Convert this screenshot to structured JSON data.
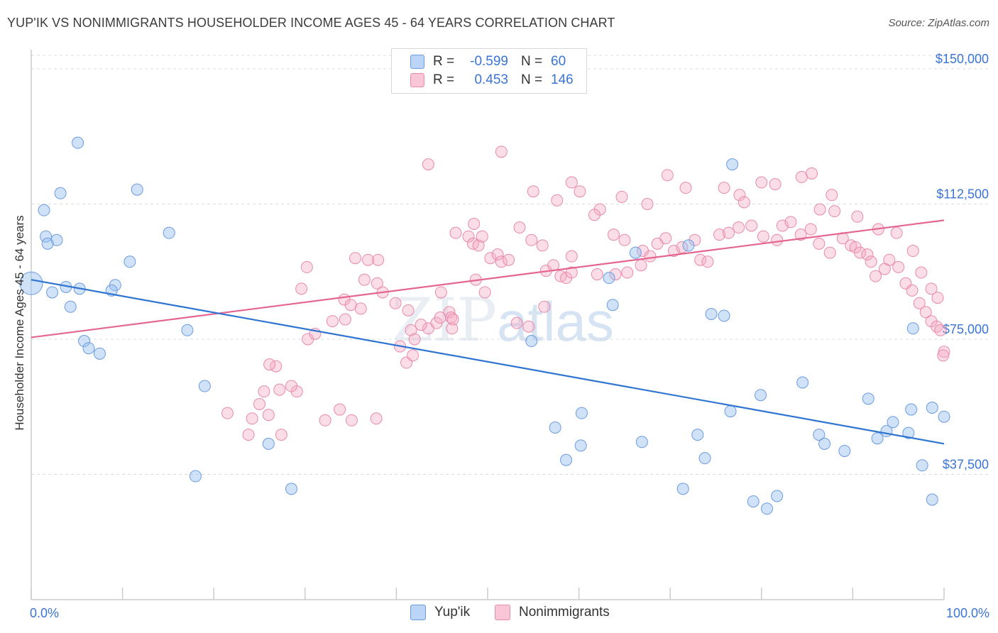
{
  "title": "YUP'IK VS NONIMMIGRANTS HOUSEHOLDER INCOME AGES 45 - 64 YEARS CORRELATION CHART",
  "source": "Source: ZipAtlas.com",
  "watermark": {
    "a": "ZIP",
    "b": "atlas"
  },
  "legend_top": [
    {
      "label": "R =",
      "r": "-0.599",
      "n_label": "N =",
      "n": "60",
      "swatch_fill": "#bcd4f5",
      "swatch_stroke": "#6b9be0"
    },
    {
      "label": "R =",
      "r": "0.453",
      "n_label": "N =",
      "n": "146",
      "swatch_fill": "#f8c6d6",
      "swatch_stroke": "#ea8aab"
    }
  ],
  "legend_bottom": [
    {
      "label": "Yup'ik",
      "fill": "#bcd4f5",
      "stroke": "#6b9be0"
    },
    {
      "label": "Nonimmigrants",
      "fill": "#f8c6d6",
      "stroke": "#ea8aab"
    }
  ],
  "colors": {
    "blue_fill": "rgba(150,190,240,0.45)",
    "blue_stroke": "#6b9be0",
    "blue_line": "#2e74d0",
    "pink_fill": "rgba(245,170,195,0.40)",
    "pink_stroke": "#e88aaa",
    "pink_line": "#e56592",
    "grid": "#dcdcdc",
    "tick_label": "#3a74d4",
    "axis": "#cccccc"
  },
  "chart_data": {
    "type": "scatter",
    "title": "YUP'IK VS NONIMMIGRANTS HOUSEHOLDER INCOME AGES 45 - 64 YEARS CORRELATION CHART",
    "xlabel": "",
    "ylabel": "Householder Income Ages 45 - 64 years",
    "xlim": [
      0,
      100
    ],
    "ylim": [
      0,
      155000
    ],
    "x_tick_labels": [
      "0.0%",
      "100.0%"
    ],
    "y_ticks": [
      37500,
      75000,
      112500,
      150000
    ],
    "y_tick_labels": [
      "$37,500",
      "$75,000",
      "$112,500",
      "$150,000"
    ],
    "grid": true,
    "legend_position": "top-center",
    "series": [
      {
        "name": "Yup'ik",
        "R": -0.599,
        "N": 60,
        "trend": [
          [
            0,
            91500
          ],
          [
            100,
            46000
          ]
        ],
        "points": [
          [
            0.0,
            90.5,
            28
          ],
          [
            5.1,
            129.5,
            14
          ],
          [
            1.4,
            110.8,
            14
          ],
          [
            3.2,
            115.5,
            14
          ],
          [
            1.6,
            103.5,
            14
          ],
          [
            2.8,
            102.5,
            14
          ],
          [
            1.8,
            101.5,
            14
          ],
          [
            11.6,
            116.5,
            14
          ],
          [
            15.1,
            104.5,
            14
          ],
          [
            10.8,
            96.5,
            14
          ],
          [
            2.3,
            88.0,
            14
          ],
          [
            3.8,
            89.5,
            14
          ],
          [
            5.3,
            89.0,
            14
          ],
          [
            9.2,
            90.0,
            14
          ],
          [
            8.8,
            88.5,
            14
          ],
          [
            4.3,
            84.0,
            14
          ],
          [
            17.1,
            77.5,
            14
          ],
          [
            5.8,
            74.5,
            14
          ],
          [
            6.3,
            72.5,
            14
          ],
          [
            7.5,
            71.0,
            14
          ],
          [
            19.0,
            62.0,
            14
          ],
          [
            18.0,
            37.0,
            14
          ],
          [
            26.0,
            46.0,
            14
          ],
          [
            28.5,
            33.5,
            14
          ],
          [
            63.3,
            92.0,
            14
          ],
          [
            76.8,
            123.5,
            14
          ],
          [
            72.0,
            101.0,
            14
          ],
          [
            63.7,
            84.5,
            14
          ],
          [
            66.2,
            99.0,
            14
          ],
          [
            75.9,
            81.5,
            14
          ],
          [
            74.5,
            82.0,
            14
          ],
          [
            54.8,
            74.5,
            14
          ],
          [
            57.4,
            50.5,
            14
          ],
          [
            60.3,
            54.5,
            14
          ],
          [
            58.6,
            41.5,
            14
          ],
          [
            60.2,
            45.5,
            14
          ],
          [
            66.9,
            46.5,
            14
          ],
          [
            73.0,
            48.5,
            14
          ],
          [
            73.8,
            42.0,
            14
          ],
          [
            71.4,
            33.5,
            14
          ],
          [
            76.6,
            55.0,
            14
          ],
          [
            79.9,
            59.5,
            14
          ],
          [
            79.1,
            30.0,
            14
          ],
          [
            81.7,
            31.5,
            14
          ],
          [
            80.6,
            28.0,
            14
          ],
          [
            84.5,
            63.0,
            14
          ],
          [
            86.3,
            48.5,
            14
          ],
          [
            86.9,
            46.0,
            14
          ],
          [
            89.1,
            44.0,
            14
          ],
          [
            91.7,
            58.5,
            14
          ],
          [
            92.7,
            47.5,
            14
          ],
          [
            93.7,
            49.5,
            14
          ],
          [
            94.4,
            52.0,
            14
          ],
          [
            96.1,
            49.0,
            14
          ],
          [
            96.4,
            55.5,
            14
          ],
          [
            96.6,
            78.0,
            14
          ],
          [
            97.6,
            40.0,
            14
          ],
          [
            98.7,
            56.0,
            14
          ],
          [
            98.7,
            30.5,
            14
          ],
          [
            100.0,
            53.5,
            14
          ]
        ]
      },
      {
        "name": "Nonimmigrants",
        "R": 0.453,
        "N": 146,
        "trend": [
          [
            0,
            75500
          ],
          [
            100,
            108000
          ]
        ],
        "points": [
          [
            21.5,
            54.5,
            14
          ],
          [
            24.2,
            53.0,
            14
          ],
          [
            26.0,
            54.0,
            14
          ],
          [
            25.0,
            57.0,
            14
          ],
          [
            23.8,
            48.5,
            14
          ],
          [
            25.5,
            60.5,
            14
          ],
          [
            27.2,
            61.0,
            14
          ],
          [
            29.1,
            60.5,
            14
          ],
          [
            28.5,
            62.0,
            14
          ],
          [
            26.8,
            67.5,
            14
          ],
          [
            26.1,
            68.0,
            14
          ],
          [
            30.3,
            75.0,
            14
          ],
          [
            31.1,
            76.5,
            14
          ],
          [
            33.0,
            80.0,
            14
          ],
          [
            34.4,
            80.5,
            14
          ],
          [
            36.1,
            83.5,
            14
          ],
          [
            34.3,
            86.0,
            14
          ],
          [
            35.0,
            84.5,
            14
          ],
          [
            35.5,
            97.5,
            14
          ],
          [
            36.9,
            97.0,
            14
          ],
          [
            38.0,
            97.0,
            14
          ],
          [
            36.5,
            91.5,
            14
          ],
          [
            37.9,
            90.5,
            14
          ],
          [
            38.5,
            88.0,
            14
          ],
          [
            30.2,
            95.0,
            14
          ],
          [
            29.6,
            89.0,
            14
          ],
          [
            39.9,
            85.0,
            14
          ],
          [
            41.3,
            83.0,
            14
          ],
          [
            41.6,
            77.5,
            14
          ],
          [
            40.4,
            73.0,
            14
          ],
          [
            41.1,
            68.5,
            14
          ],
          [
            41.8,
            70.5,
            14
          ],
          [
            42.0,
            75.0,
            14
          ],
          [
            43.5,
            78.0,
            14
          ],
          [
            44.4,
            79.5,
            14
          ],
          [
            42.7,
            79.0,
            14
          ],
          [
            44.8,
            81.0,
            14
          ],
          [
            45.8,
            82.5,
            14
          ],
          [
            46.0,
            81.0,
            14
          ],
          [
            46.1,
            78.0,
            14
          ],
          [
            46.2,
            80.5,
            14
          ],
          [
            44.9,
            88.0,
            14
          ],
          [
            48.7,
            91.5,
            14
          ],
          [
            49.7,
            88.0,
            14
          ],
          [
            46.5,
            104.5,
            14
          ],
          [
            47.9,
            103.5,
            14
          ],
          [
            48.4,
            101.5,
            14
          ],
          [
            49.0,
            101.0,
            14
          ],
          [
            48.5,
            107.0,
            14
          ],
          [
            49.4,
            103.5,
            14
          ],
          [
            50.3,
            97.5,
            14
          ],
          [
            51.1,
            98.5,
            14
          ],
          [
            51.5,
            96.5,
            14
          ],
          [
            52.3,
            97.0,
            14
          ],
          [
            53.5,
            106.0,
            14
          ],
          [
            54.8,
            102.5,
            14
          ],
          [
            56.0,
            101.0,
            14
          ],
          [
            56.4,
            94.0,
            14
          ],
          [
            57.2,
            95.5,
            14
          ],
          [
            58.0,
            92.5,
            14
          ],
          [
            58.6,
            92.0,
            14
          ],
          [
            59.2,
            93.5,
            14
          ],
          [
            62.0,
            93.0,
            14
          ],
          [
            64.0,
            93.0,
            14
          ],
          [
            65.3,
            93.5,
            14
          ],
          [
            66.8,
            95.5,
            14
          ],
          [
            67.0,
            99.5,
            14
          ],
          [
            67.8,
            98.0,
            14
          ],
          [
            68.6,
            101.5,
            14
          ],
          [
            69.5,
            103.0,
            14
          ],
          [
            70.4,
            99.5,
            14
          ],
          [
            71.3,
            100.5,
            14
          ],
          [
            72.7,
            102.5,
            14
          ],
          [
            73.3,
            97.0,
            14
          ],
          [
            74.1,
            96.5,
            14
          ],
          [
            75.4,
            104.0,
            14
          ],
          [
            76.4,
            104.5,
            14
          ],
          [
            77.5,
            106.0,
            14
          ],
          [
            78.9,
            106.5,
            14
          ],
          [
            80.2,
            103.5,
            14
          ],
          [
            81.7,
            102.5,
            14
          ],
          [
            82.3,
            106.5,
            14
          ],
          [
            83.2,
            107.5,
            14
          ],
          [
            84.3,
            104.0,
            14
          ],
          [
            85.4,
            105.5,
            14
          ],
          [
            86.3,
            101.5,
            14
          ],
          [
            87.5,
            99.0,
            14
          ],
          [
            88.9,
            103.0,
            14
          ],
          [
            89.8,
            101.0,
            14
          ],
          [
            90.3,
            100.5,
            14
          ],
          [
            90.8,
            99.0,
            14
          ],
          [
            91.6,
            98.5,
            14
          ],
          [
            92.0,
            96.5,
            14
          ],
          [
            92.5,
            92.5,
            14
          ],
          [
            93.5,
            94.5,
            14
          ],
          [
            94.0,
            97.0,
            14
          ],
          [
            95.0,
            95.0,
            14
          ],
          [
            95.8,
            90.5,
            14
          ],
          [
            96.5,
            88.5,
            14
          ],
          [
            97.3,
            85.0,
            14
          ],
          [
            98.0,
            82.5,
            14
          ],
          [
            98.6,
            80.0,
            14
          ],
          [
            99.2,
            78.5,
            14
          ],
          [
            99.6,
            77.5,
            14
          ],
          [
            100.0,
            71.5,
            14
          ],
          [
            99.9,
            70.5,
            14
          ],
          [
            43.5,
            123.5,
            14
          ],
          [
            51.5,
            127.0,
            14
          ],
          [
            55.0,
            116.0,
            14
          ],
          [
            57.6,
            113.5,
            14
          ],
          [
            59.2,
            118.5,
            14
          ],
          [
            60.1,
            116.0,
            14
          ],
          [
            62.3,
            111.0,
            14
          ],
          [
            64.7,
            114.5,
            14
          ],
          [
            67.5,
            112.5,
            14
          ],
          [
            69.7,
            120.5,
            14
          ],
          [
            71.7,
            117.0,
            14
          ],
          [
            75.9,
            117.0,
            14
          ],
          [
            77.6,
            115.0,
            14
          ],
          [
            78.1,
            113.0,
            14
          ],
          [
            80.0,
            118.5,
            14
          ],
          [
            81.5,
            118.0,
            14
          ],
          [
            84.4,
            120.0,
            14
          ],
          [
            85.5,
            121.0,
            14
          ],
          [
            86.4,
            111.0,
            14
          ],
          [
            87.7,
            115.0,
            14
          ],
          [
            88.0,
            110.5,
            14
          ],
          [
            90.5,
            109.0,
            14
          ],
          [
            92.8,
            105.5,
            14
          ],
          [
            94.8,
            104.5,
            14
          ],
          [
            96.6,
            99.5,
            14
          ],
          [
            97.5,
            93.5,
            14
          ],
          [
            98.6,
            89.0,
            14
          ],
          [
            99.3,
            86.5,
            14
          ],
          [
            33.8,
            55.5,
            14
          ],
          [
            35.1,
            52.5,
            14
          ],
          [
            37.8,
            53.0,
            14
          ],
          [
            27.4,
            48.5,
            14
          ],
          [
            32.2,
            52.5,
            14
          ],
          [
            53.2,
            79.5,
            14
          ],
          [
            54.5,
            78.5,
            14
          ],
          [
            56.2,
            84.0,
            14
          ],
          [
            59.2,
            98.0,
            14
          ],
          [
            61.7,
            109.5,
            14
          ],
          [
            63.8,
            104.0,
            14
          ],
          [
            65.0,
            102.5,
            14
          ]
        ]
      }
    ]
  }
}
